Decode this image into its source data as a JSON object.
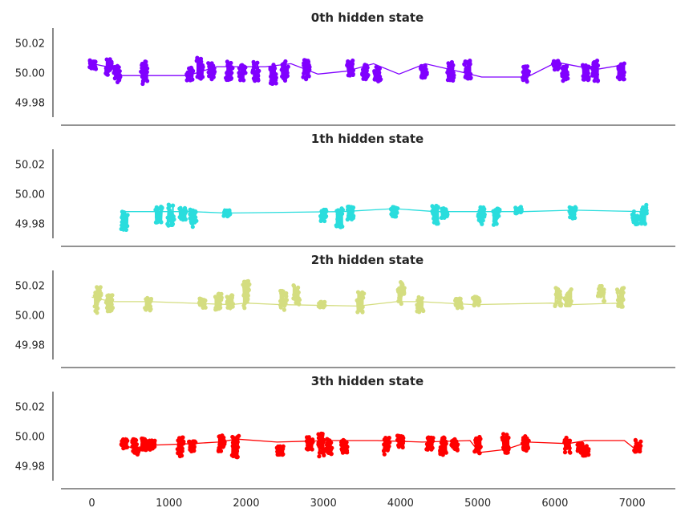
{
  "chart_data": {
    "type": "line",
    "xlim": [
      -400,
      7560
    ],
    "ylim": [
      49.97,
      50.03
    ],
    "x_ticks": [
      "0",
      "1000",
      "2000",
      "3000",
      "4000",
      "5000",
      "6000",
      "7000"
    ],
    "x_tick_values": [
      0,
      1000,
      2000,
      3000,
      4000,
      5000,
      6000,
      7000
    ],
    "y_ticks": [
      "50.02",
      "50.00",
      "49.98"
    ],
    "y_tick_values": [
      50.02,
      50.0,
      49.98
    ],
    "grid": false,
    "panels": [
      {
        "title": "0th hidden state",
        "color": "#8000ff",
        "clusters": [
          [
            10,
            50.005,
            1.5
          ],
          [
            220,
            50.004,
            2.5
          ],
          [
            330,
            49.999,
            2.5
          ],
          [
            680,
            50.0,
            3.5
          ],
          [
            1270,
            49.999,
            2
          ],
          [
            1400,
            50.003,
            3.5
          ],
          [
            1550,
            50.001,
            2.5
          ],
          [
            1780,
            50.001,
            3
          ],
          [
            1950,
            50.0,
            2.5
          ],
          [
            2120,
            50.001,
            3
          ],
          [
            2350,
            49.999,
            3
          ],
          [
            2500,
            50.001,
            3
          ],
          [
            2780,
            50.002,
            3
          ],
          [
            3350,
            50.003,
            2.5
          ],
          [
            3540,
            50.001,
            2.5
          ],
          [
            3700,
            49.999,
            2.5
          ],
          [
            4300,
            50.001,
            2
          ],
          [
            4650,
            50.001,
            3
          ],
          [
            4870,
            50.002,
            3
          ],
          [
            5620,
            49.999,
            2.5
          ],
          [
            6020,
            50.005,
            1.5
          ],
          [
            6130,
            50.0,
            2.5
          ],
          [
            6400,
            50.0,
            2.5
          ],
          [
            6520,
            50.001,
            3.5
          ],
          [
            6860,
            50.001,
            2.5
          ]
        ],
        "trend": [
          [
            10,
            50.006
          ],
          [
            280,
            50.003
          ],
          [
            380,
            49.998
          ],
          [
            1240,
            49.998
          ],
          [
            1620,
            50.004
          ],
          [
            2250,
            50.004
          ],
          [
            2580,
            50.006
          ],
          [
            2930,
            49.999
          ],
          [
            3300,
            50.001
          ],
          [
            3650,
            50.006
          ],
          [
            3980,
            49.999
          ],
          [
            4320,
            50.006
          ],
          [
            4820,
            50.0
          ],
          [
            5050,
            49.997
          ],
          [
            5640,
            49.997
          ],
          [
            6020,
            50.007
          ],
          [
            6520,
            50.002
          ],
          [
            6860,
            50.005
          ]
        ]
      },
      {
        "title": "1th hidden state",
        "color": "#2adddd",
        "clusters": [
          [
            420,
            49.982,
            3
          ],
          [
            870,
            49.986,
            2.5
          ],
          [
            1020,
            49.985,
            3.5
          ],
          [
            1180,
            49.987,
            2
          ],
          [
            1310,
            49.984,
            3
          ],
          [
            1750,
            49.987,
            1
          ],
          [
            3000,
            49.986,
            2
          ],
          [
            3210,
            49.984,
            3
          ],
          [
            3350,
            49.987,
            2
          ],
          [
            3920,
            49.988,
            1.5
          ],
          [
            4450,
            49.986,
            3
          ],
          [
            4570,
            49.987,
            1.5
          ],
          [
            5050,
            49.985,
            3
          ],
          [
            5240,
            49.985,
            3
          ],
          [
            5530,
            49.989,
            1
          ],
          [
            6230,
            49.987,
            2
          ],
          [
            7040,
            49.984,
            2.5
          ],
          [
            7150,
            49.986,
            3
          ]
        ],
        "trend": [
          [
            420,
            49.988
          ],
          [
            1300,
            49.988
          ],
          [
            1750,
            49.987
          ],
          [
            3250,
            49.988
          ],
          [
            3920,
            49.99
          ],
          [
            4450,
            49.988
          ],
          [
            5600,
            49.988
          ],
          [
            6250,
            49.989
          ],
          [
            7150,
            49.988
          ]
        ]
      },
      {
        "title": "2th hidden state",
        "color": "#d4dd80",
        "clusters": [
          [
            80,
            50.01,
            4
          ],
          [
            230,
            50.008,
            2.5
          ],
          [
            730,
            50.007,
            2
          ],
          [
            1430,
            50.008,
            1.5
          ],
          [
            1640,
            50.009,
            2.5
          ],
          [
            1790,
            50.009,
            2
          ],
          [
            2000,
            50.013,
            4.5
          ],
          [
            2480,
            50.01,
            3
          ],
          [
            2650,
            50.014,
            3.5
          ],
          [
            2980,
            50.007,
            1
          ],
          [
            3480,
            50.008,
            3.5
          ],
          [
            4010,
            50.015,
            3.5
          ],
          [
            4250,
            50.007,
            2.5
          ],
          [
            4750,
            50.008,
            1.5
          ],
          [
            4980,
            50.009,
            1.5
          ],
          [
            6040,
            50.012,
            3
          ],
          [
            6170,
            50.012,
            2.5
          ],
          [
            6600,
            50.014,
            2.5
          ],
          [
            6850,
            50.012,
            3
          ]
        ],
        "trend": [
          [
            0,
            50.012
          ],
          [
            250,
            50.009
          ],
          [
            750,
            50.009
          ],
          [
            1800,
            50.007
          ],
          [
            2000,
            50.008
          ],
          [
            2450,
            50.007
          ],
          [
            3450,
            50.006
          ],
          [
            3950,
            50.009
          ],
          [
            4250,
            50.009
          ],
          [
            4950,
            50.007
          ],
          [
            5950,
            50.008
          ],
          [
            6200,
            50.007
          ],
          [
            6850,
            50.008
          ]
        ]
      },
      {
        "title": "3th hidden state",
        "color": "#ff0000",
        "clusters": [
          [
            420,
            49.995,
            1.5
          ],
          [
            560,
            49.993,
            2.5
          ],
          [
            680,
            49.994,
            2
          ],
          [
            780,
            49.994,
            1.5
          ],
          [
            1150,
            49.993,
            3
          ],
          [
            1300,
            49.993,
            2
          ],
          [
            1680,
            49.995,
            2.5
          ],
          [
            1860,
            49.993,
            3.5
          ],
          [
            2440,
            49.99,
            1.5
          ],
          [
            2820,
            49.995,
            2
          ],
          [
            2970,
            49.994,
            3.5
          ],
          [
            3070,
            49.993,
            2.5
          ],
          [
            3270,
            49.993,
            2
          ],
          [
            3820,
            49.994,
            3
          ],
          [
            4000,
            49.996,
            2
          ],
          [
            4380,
            49.995,
            2
          ],
          [
            4550,
            49.994,
            3
          ],
          [
            4700,
            49.994,
            2
          ],
          [
            5000,
            49.994,
            2.5
          ],
          [
            5360,
            49.995,
            3
          ],
          [
            5620,
            49.995,
            2.5
          ],
          [
            6160,
            49.994,
            2.5
          ],
          [
            6330,
            49.992,
            1.5
          ],
          [
            6400,
            49.99,
            1.5
          ],
          [
            7070,
            49.993,
            2
          ]
        ],
        "trend": [
          [
            380,
            49.995
          ],
          [
            520,
            49.992
          ],
          [
            820,
            49.994
          ],
          [
            1300,
            49.995
          ],
          [
            1640,
            49.996
          ],
          [
            1880,
            49.998
          ],
          [
            2400,
            49.996
          ],
          [
            3070,
            49.997
          ],
          [
            3700,
            49.997
          ],
          [
            4280,
            49.996
          ],
          [
            4900,
            49.997
          ],
          [
            5020,
            49.989
          ],
          [
            5360,
            49.991
          ],
          [
            5650,
            49.996
          ],
          [
            6170,
            49.995
          ],
          [
            6400,
            49.997
          ],
          [
            6900,
            49.997
          ],
          [
            7070,
            49.99
          ]
        ]
      }
    ]
  }
}
